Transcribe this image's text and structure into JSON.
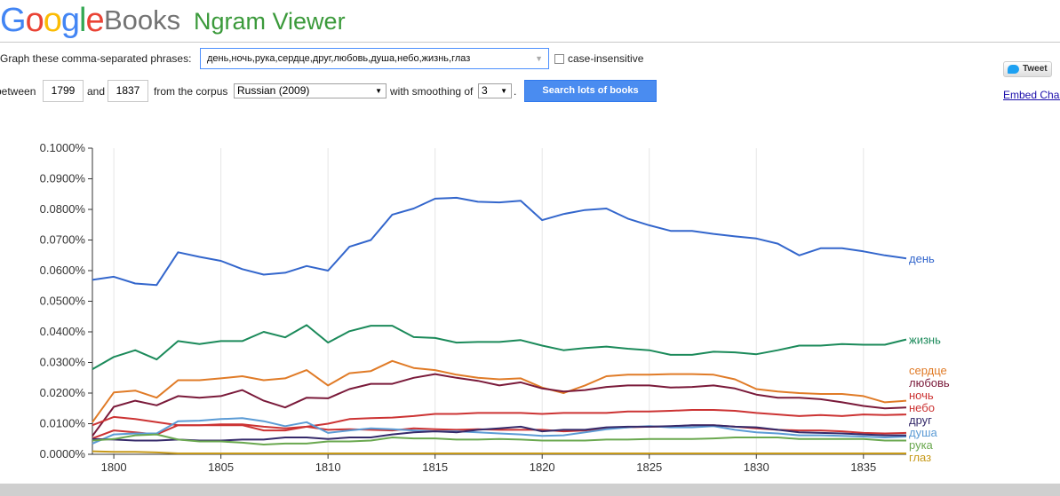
{
  "header": {
    "logo_google": "Google",
    "logo_books": "Books",
    "logo_ngram": "Ngram Viewer"
  },
  "form": {
    "phrases_label": "Graph these comma-separated phrases:",
    "query_value": "день,ночь,рука,сердце,друг,любовь,душа,небо,жизнь,глаз",
    "case_insensitive_label": "case-insensitive",
    "between_label": "between",
    "start_year": "1799",
    "and_label": "and",
    "end_year": "1837",
    "corpus_label": "from the corpus",
    "corpus_value": "Russian (2009)",
    "smoothing_label": "with smoothing of",
    "smoothing_value": "3",
    "period": ".",
    "search_button": "Search lots of books"
  },
  "share": {
    "tweet_label": "Tweet",
    "embed_label": "Embed Chart"
  },
  "colors": {
    "accent": "#4a8cf0",
    "logo_blue": "#4285f4",
    "logo_red": "#ea4335",
    "logo_yellow": "#fbbc05",
    "logo_green": "#34a853",
    "ngram_green": "#3b9a3b"
  },
  "chart_data": {
    "type": "line",
    "xlim": [
      1799,
      1837
    ],
    "ylim": [
      0,
      0.1
    ],
    "y_unit": "%",
    "y_ticks": [
      "0.0000%",
      "0.0100%",
      "0.0200%",
      "0.0300%",
      "0.0400%",
      "0.0500%",
      "0.0600%",
      "0.0700%",
      "0.0800%",
      "0.0900%",
      "0.1000%"
    ],
    "x_ticks": [
      "1800",
      "1805",
      "1810",
      "1815",
      "1820",
      "1825",
      "1830",
      "1835"
    ],
    "grid": "vertical",
    "legend": "right-end-labels",
    "x": [
      1799,
      1800,
      1801,
      1802,
      1803,
      1804,
      1805,
      1806,
      1807,
      1808,
      1809,
      1810,
      1811,
      1812,
      1813,
      1814,
      1815,
      1816,
      1817,
      1818,
      1819,
      1820,
      1821,
      1822,
      1823,
      1824,
      1825,
      1826,
      1827,
      1828,
      1829,
      1830,
      1831,
      1832,
      1833,
      1834,
      1835,
      1836,
      1837
    ],
    "series": [
      {
        "name": "день",
        "color": "#3366cc",
        "values": [
          0.057,
          0.058,
          0.0558,
          0.0553,
          0.066,
          0.0645,
          0.0632,
          0.0605,
          0.0587,
          0.0593,
          0.0615,
          0.06,
          0.0678,
          0.07,
          0.0783,
          0.0803,
          0.0835,
          0.0838,
          0.0825,
          0.0823,
          0.0828,
          0.0765,
          0.0785,
          0.0798,
          0.0803,
          0.077,
          0.0748,
          0.073,
          0.073,
          0.072,
          0.0712,
          0.0705,
          0.0688,
          0.065,
          0.0673,
          0.0673,
          0.0663,
          0.065,
          0.064
        ]
      },
      {
        "name": "жизнь",
        "color": "#1b8a5a",
        "values": [
          0.0278,
          0.0318,
          0.034,
          0.031,
          0.037,
          0.036,
          0.037,
          0.037,
          0.04,
          0.0382,
          0.0422,
          0.0365,
          0.0402,
          0.042,
          0.042,
          0.0383,
          0.038,
          0.0365,
          0.0367,
          0.0367,
          0.0373,
          0.0355,
          0.034,
          0.0347,
          0.0352,
          0.0345,
          0.034,
          0.0325,
          0.0325,
          0.0335,
          0.0333,
          0.0327,
          0.034,
          0.0355,
          0.0355,
          0.036,
          0.0358,
          0.0358,
          0.0375
        ]
      },
      {
        "name": "сердце",
        "color": "#e07b27",
        "values": [
          0.0105,
          0.0202,
          0.0208,
          0.0185,
          0.0242,
          0.0242,
          0.0248,
          0.0255,
          0.0242,
          0.0248,
          0.0275,
          0.0225,
          0.0265,
          0.0272,
          0.0305,
          0.0282,
          0.0275,
          0.026,
          0.025,
          0.0245,
          0.0248,
          0.0218,
          0.02,
          0.0225,
          0.0255,
          0.026,
          0.026,
          0.0262,
          0.0262,
          0.026,
          0.0245,
          0.0213,
          0.0205,
          0.02,
          0.0197,
          0.0197,
          0.019,
          0.017,
          0.0175
        ]
      },
      {
        "name": "любовь",
        "color": "#7a1a3a",
        "values": [
          0.006,
          0.0155,
          0.0175,
          0.016,
          0.019,
          0.0185,
          0.019,
          0.021,
          0.0175,
          0.0153,
          0.0185,
          0.0183,
          0.0213,
          0.023,
          0.023,
          0.025,
          0.0262,
          0.025,
          0.024,
          0.0225,
          0.0235,
          0.0215,
          0.0205,
          0.021,
          0.022,
          0.0225,
          0.0225,
          0.0218,
          0.022,
          0.0225,
          0.0215,
          0.0195,
          0.0185,
          0.0185,
          0.018,
          0.017,
          0.0158,
          0.015,
          0.0153
        ]
      },
      {
        "name": "ночь",
        "color": "#cc3333",
        "values": [
          0.0095,
          0.0122,
          0.0115,
          0.0105,
          0.0095,
          0.0095,
          0.0098,
          0.0098,
          0.009,
          0.0085,
          0.009,
          0.01,
          0.0115,
          0.0118,
          0.012,
          0.0125,
          0.0132,
          0.0132,
          0.0135,
          0.0135,
          0.0135,
          0.0132,
          0.0135,
          0.0135,
          0.0135,
          0.014,
          0.014,
          0.0142,
          0.0145,
          0.0145,
          0.0142,
          0.0135,
          0.013,
          0.0125,
          0.0128,
          0.0125,
          0.013,
          0.0128,
          0.013
        ]
      },
      {
        "name": "небо",
        "color": "#cc3333",
        "values": [
          0.0052,
          0.0078,
          0.0072,
          0.0065,
          0.0095,
          0.0095,
          0.0095,
          0.0095,
          0.0078,
          0.0078,
          0.009,
          0.008,
          0.0082,
          0.008,
          0.0078,
          0.0085,
          0.0082,
          0.008,
          0.0082,
          0.008,
          0.008,
          0.008,
          0.0075,
          0.0078,
          0.0085,
          0.0088,
          0.009,
          0.009,
          0.0095,
          0.0095,
          0.009,
          0.0085,
          0.008,
          0.0078,
          0.0078,
          0.0075,
          0.007,
          0.0068,
          0.007
        ]
      },
      {
        "name": "душа",
        "color": "#5b9bd5",
        "values": [
          0.0035,
          0.0065,
          0.0068,
          0.0068,
          0.0108,
          0.011,
          0.0115,
          0.0118,
          0.0108,
          0.0092,
          0.0105,
          0.007,
          0.0078,
          0.0085,
          0.0082,
          0.0078,
          0.0075,
          0.0075,
          0.0072,
          0.0068,
          0.0065,
          0.006,
          0.0062,
          0.0072,
          0.0082,
          0.0088,
          0.0092,
          0.0088,
          0.0088,
          0.0092,
          0.008,
          0.0072,
          0.0068,
          0.0062,
          0.0062,
          0.006,
          0.0058,
          0.0055,
          0.0058
        ]
      },
      {
        "name": "друг",
        "color": "#352a6a",
        "values": [
          0.005,
          0.0048,
          0.0045,
          0.0045,
          0.0048,
          0.0045,
          0.0045,
          0.0048,
          0.0048,
          0.0055,
          0.0055,
          0.005,
          0.0055,
          0.0055,
          0.0065,
          0.0072,
          0.0075,
          0.0072,
          0.008,
          0.0085,
          0.009,
          0.0075,
          0.008,
          0.008,
          0.0088,
          0.009,
          0.009,
          0.0092,
          0.0095,
          0.0095,
          0.009,
          0.0088,
          0.008,
          0.0072,
          0.007,
          0.0068,
          0.0065,
          0.0062,
          0.0062
        ]
      },
      {
        "name": "рука",
        "color": "#6aa84f",
        "values": [
          0.0045,
          0.005,
          0.0062,
          0.0065,
          0.0048,
          0.0042,
          0.0042,
          0.0038,
          0.0032,
          0.0035,
          0.0035,
          0.0042,
          0.0042,
          0.0045,
          0.0055,
          0.0052,
          0.0052,
          0.0048,
          0.0048,
          0.005,
          0.0048,
          0.0045,
          0.0045,
          0.0045,
          0.0048,
          0.0048,
          0.005,
          0.005,
          0.005,
          0.0052,
          0.0055,
          0.0055,
          0.0055,
          0.005,
          0.005,
          0.005,
          0.005,
          0.0045,
          0.0045
        ]
      },
      {
        "name": "глаз",
        "color": "#c79a1a",
        "values": [
          0.001,
          0.0008,
          0.0008,
          0.0006,
          0.0003,
          0.0003,
          0.0003,
          0.0003,
          0.0003,
          0.0003,
          0.0003,
          0.0003,
          0.0003,
          0.0003,
          0.0003,
          0.0003,
          0.0003,
          0.0003,
          0.0003,
          0.0003,
          0.0003,
          0.0003,
          0.0003,
          0.0003,
          0.0003,
          0.0003,
          0.0003,
          0.0003,
          0.0003,
          0.0003,
          0.0003,
          0.0003,
          0.0003,
          0.0003,
          0.0003,
          0.0003,
          0.0003,
          0.0003,
          0.0003
        ]
      }
    ]
  }
}
